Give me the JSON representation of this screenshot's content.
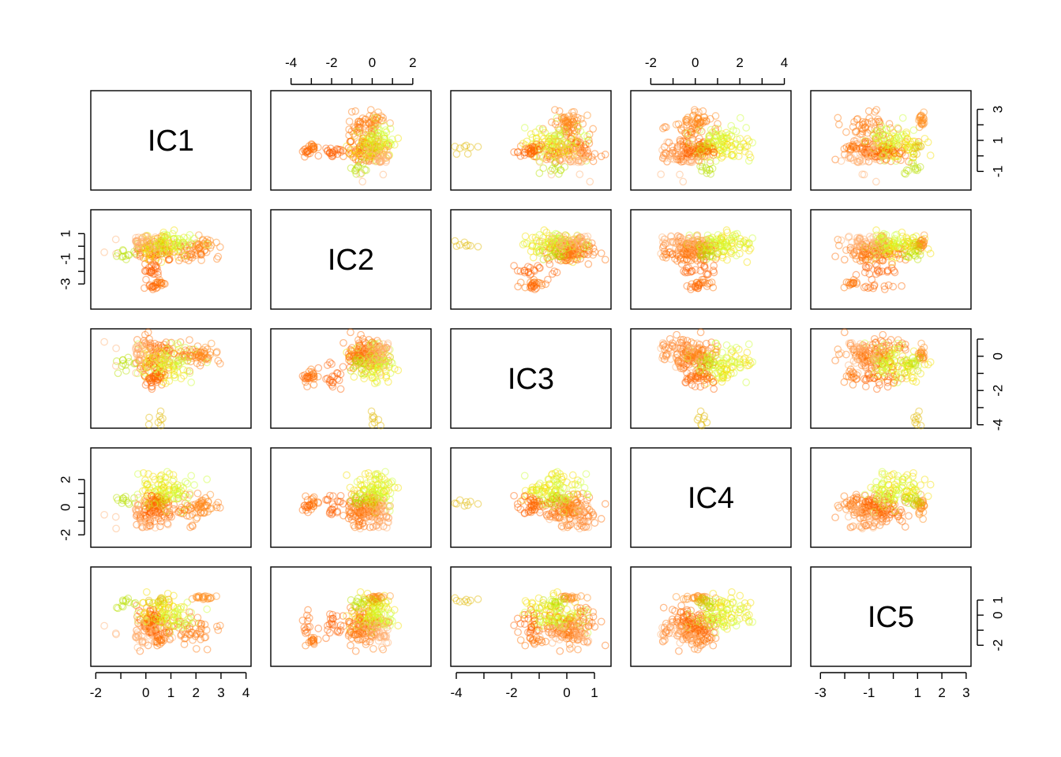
{
  "chart_data": {
    "type": "scatter",
    "subtype": "pairs-matrix",
    "variables": [
      "IC1",
      "IC2",
      "IC3",
      "IC4",
      "IC5"
    ],
    "ranges": {
      "IC1": [
        -2.2,
        4.2
      ],
      "IC2": [
        -5,
        2.9
      ],
      "IC3": [
        -4.2,
        1.6
      ],
      "IC4": [
        -2.9,
        4.3
      ],
      "IC5": [
        -3.4,
        3.2
      ]
    },
    "axis_ticks": {
      "IC1": {
        "positions": [
          -2,
          -1,
          0,
          1,
          2,
          3,
          4
        ],
        "labels": [
          "-2",
          "",
          "0",
          "1",
          "2",
          "3",
          "4"
        ]
      },
      "IC2": {
        "positions": [
          -4,
          -3,
          -2,
          -1,
          0,
          1,
          2
        ],
        "labels": [
          "-4",
          "",
          "-2",
          "",
          "0",
          "",
          "2"
        ]
      },
      "IC3": {
        "positions": [
          -4,
          -3,
          -2,
          -1,
          0,
          1
        ],
        "labels": [
          "-4",
          "",
          "-2",
          "",
          "0",
          "1"
        ]
      },
      "IC4": {
        "positions": [
          -2,
          -1,
          0,
          1,
          2,
          3,
          4
        ],
        "labels": [
          "-2",
          "",
          "0",
          "",
          "2",
          "",
          "4"
        ]
      },
      "IC5": {
        "positions": [
          -3,
          -2,
          -1,
          0,
          1,
          2,
          3
        ],
        "labels": [
          "-3",
          "",
          "-1",
          "",
          "1",
          "2",
          "3"
        ]
      }
    },
    "row_axis_ticks": {
      "IC1": {
        "positions": [
          -1,
          0,
          1,
          2,
          3
        ],
        "labels": [
          "-1",
          "",
          "1",
          "",
          "3"
        ]
      },
      "IC2": {
        "positions": [
          -3,
          -2,
          -1,
          0,
          1
        ],
        "labels": [
          "-3",
          "",
          "-1",
          "",
          "1"
        ]
      },
      "IC3": {
        "positions": [
          -4,
          -3,
          -2,
          -1,
          0,
          1
        ],
        "labels": [
          "-4",
          "",
          "-2",
          "",
          "0",
          ""
        ]
      },
      "IC4": {
        "positions": [
          -2,
          -1,
          0,
          1,
          2
        ],
        "labels": [
          "-2",
          "",
          "0",
          "",
          "2"
        ]
      },
      "IC5": {
        "positions": [
          -2,
          -1,
          0,
          1
        ],
        "labels": [
          "-2",
          "",
          "0",
          "1"
        ]
      }
    },
    "clusters": [
      {
        "IC1": 0.4,
        "IC2": -0.4,
        "IC3": 0.2,
        "IC4": -0.4,
        "IC5": -0.6,
        "spread": [
          0.45,
          0.55,
          0.45,
          0.55,
          0.55
        ],
        "n": 70,
        "color": "#ff6a00"
      },
      {
        "IC1": 0.6,
        "IC2": 0.1,
        "IC3": -0.6,
        "IC4": 1.4,
        "IC5": 0.2,
        "spread": [
          0.45,
          0.5,
          0.5,
          0.55,
          0.55
        ],
        "n": 60,
        "color": "#f5e000"
      },
      {
        "IC1": 1.8,
        "IC2": -0.5,
        "IC3": 0.0,
        "IC4": 0.0,
        "IC5": -1.0,
        "spread": [
          0.4,
          0.45,
          0.35,
          0.55,
          0.5
        ],
        "n": 45,
        "color": "#ff7a10"
      },
      {
        "IC1": 2.3,
        "IC2": 0.2,
        "IC3": 0.0,
        "IC4": 0.1,
        "IC5": 1.2,
        "spread": [
          0.2,
          0.3,
          0.25,
          0.45,
          0.1
        ],
        "n": 20,
        "color": "#ff8c1a"
      },
      {
        "IC1": -0.8,
        "IC2": -0.6,
        "IC3": -0.6,
        "IC4": 0.3,
        "IC5": 0.8,
        "spread": [
          0.15,
          0.2,
          0.2,
          0.25,
          0.2
        ],
        "n": 12,
        "color": "#b8e000"
      },
      {
        "IC1": 0.3,
        "IC2": -1.9,
        "IC3": -1.2,
        "IC4": 0.3,
        "IC5": -0.6,
        "spread": [
          0.25,
          0.25,
          0.4,
          0.45,
          0.35
        ],
        "n": 22,
        "color": "#ff6000"
      },
      {
        "IC1": 0.6,
        "IC2": -2.9,
        "IC3": -1.2,
        "IC4": 0.3,
        "IC5": -1.7,
        "spread": [
          0.15,
          0.15,
          0.2,
          0.3,
          0.15
        ],
        "n": 14,
        "color": "#ff7000"
      },
      {
        "IC1": 0.2,
        "IC2": -3.3,
        "IC3": -1.3,
        "IC4": 0.0,
        "IC5": -0.8,
        "spread": [
          0.15,
          0.12,
          0.2,
          0.25,
          0.4
        ],
        "n": 12,
        "color": "#ff6600"
      },
      {
        "IC1": 0.4,
        "IC2": 0.1,
        "IC3": -3.7,
        "IC4": 0.1,
        "IC5": 1.0,
        "spread": [
          0.15,
          0.15,
          0.3,
          0.15,
          0.1
        ],
        "n": 8,
        "color": "#e0b800"
      },
      {
        "IC1": 1.0,
        "IC2": 0.3,
        "IC3": -0.3,
        "IC4": 1.0,
        "IC5": -0.2,
        "spread": [
          0.55,
          0.4,
          0.5,
          0.7,
          0.6
        ],
        "n": 40,
        "color": "#ccff33"
      },
      {
        "IC1": 0.0,
        "IC2": 0.2,
        "IC3": 0.2,
        "IC4": -0.5,
        "IC5": -1.2,
        "spread": [
          0.5,
          0.45,
          0.45,
          0.6,
          0.5
        ],
        "n": 35,
        "color": "#ffb070"
      }
    ]
  }
}
